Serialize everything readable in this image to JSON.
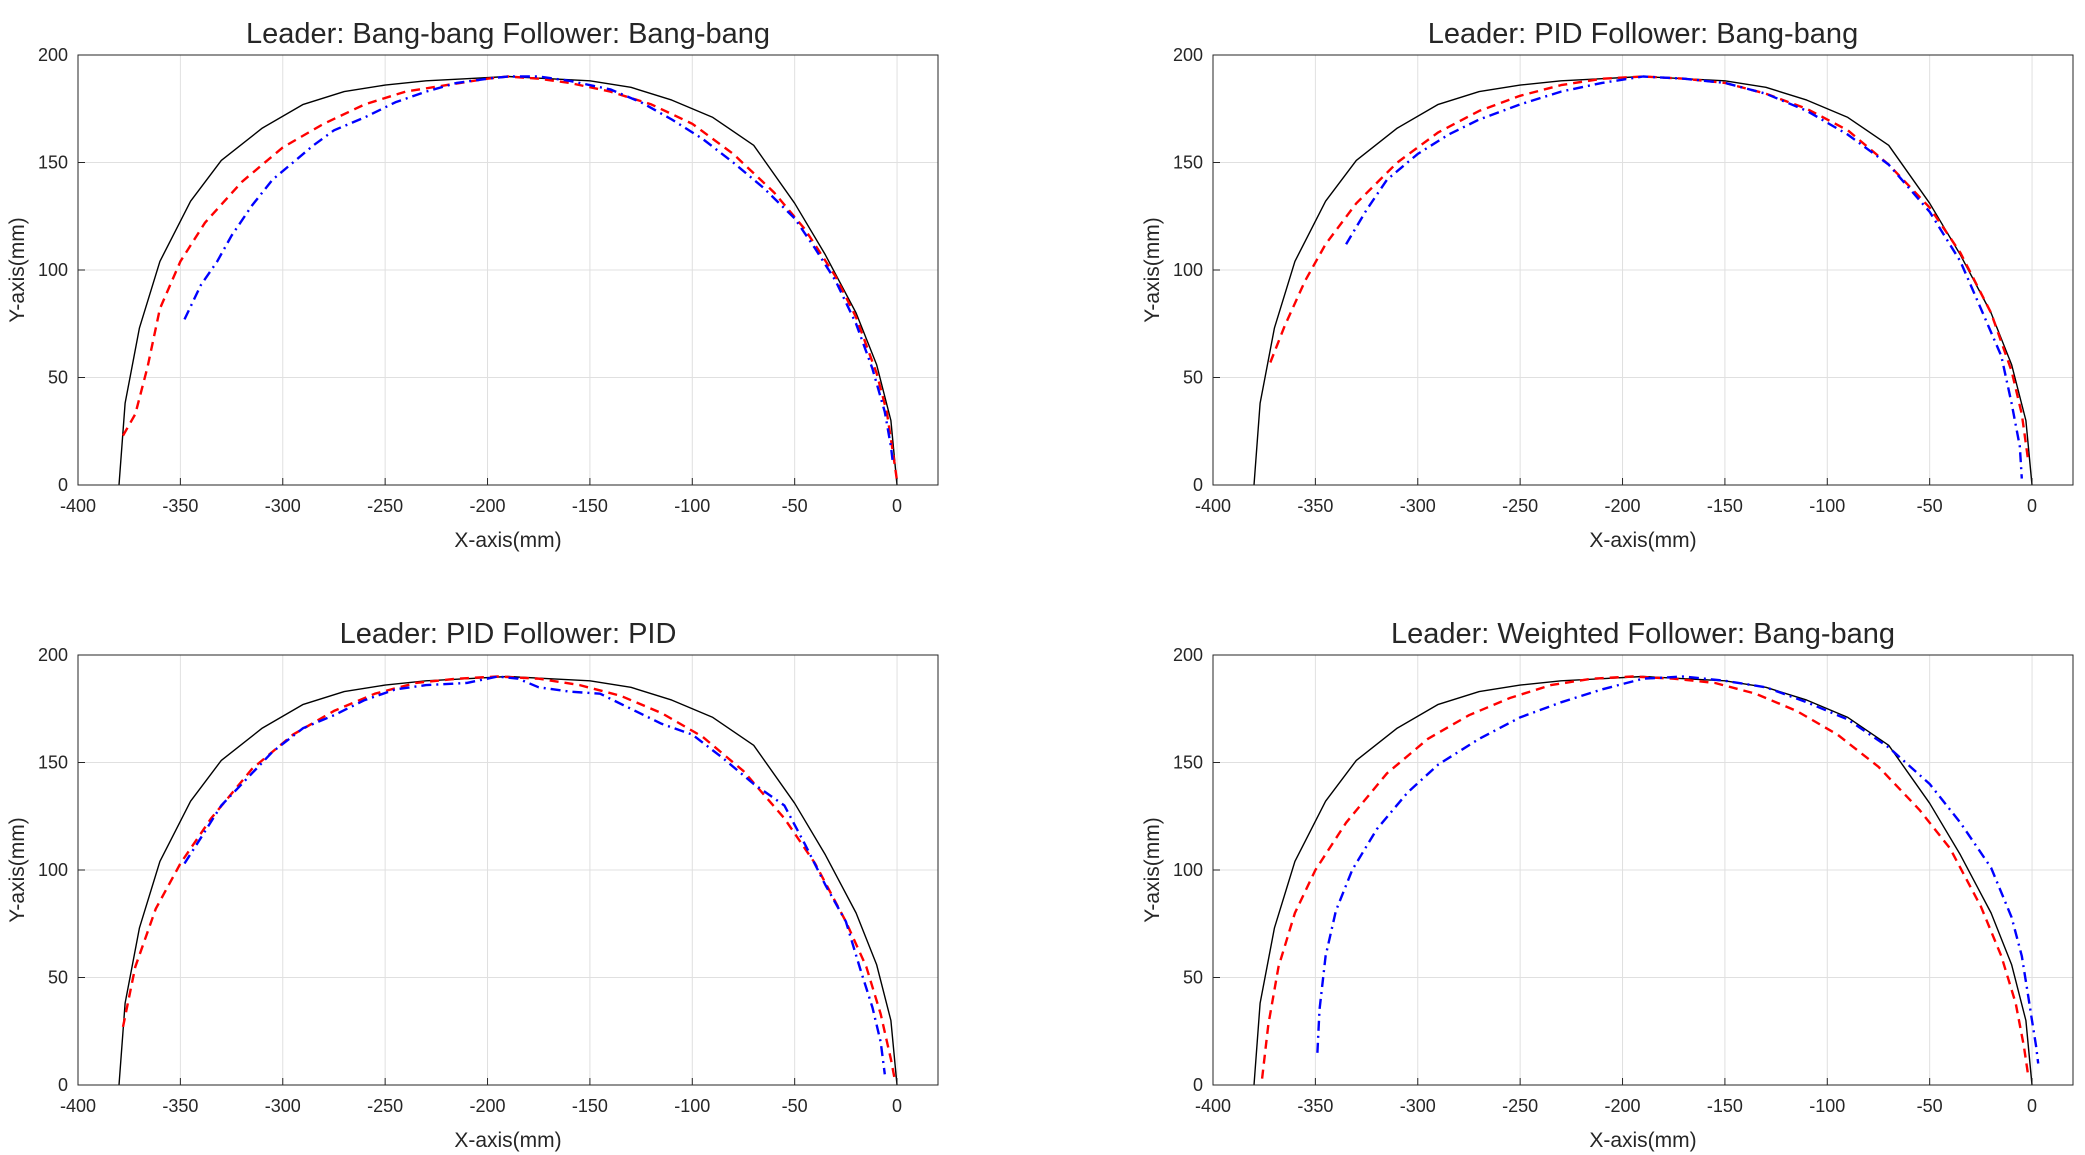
{
  "colors": {
    "reference": "#000000",
    "leader": "#ff0000",
    "follower": "#0000ff",
    "grid": "#e0e0e0",
    "axes": "#262626"
  },
  "chart_data": [
    {
      "type": "line",
      "title": "Leader: Bang-bang   Follower: Bang-bang",
      "xlabel": "X-axis(mm)",
      "ylabel": "Y-axis(mm)",
      "xlim": [
        -400,
        20
      ],
      "ylim": [
        0,
        200
      ],
      "xticks": [
        -400,
        -350,
        -300,
        -250,
        -200,
        -150,
        -100,
        -50,
        0
      ],
      "yticks": [
        0,
        50,
        100,
        150,
        200
      ],
      "grid": true,
      "series": [
        {
          "style": "solid",
          "color": "#000000",
          "x": [
            -380,
            -377,
            -370,
            -360,
            -345,
            -330,
            -310,
            -290,
            -270,
            -250,
            -230,
            -210,
            -190,
            -170,
            -150,
            -130,
            -110,
            -90,
            -70,
            -50,
            -35,
            -20,
            -10,
            -3,
            0
          ],
          "y": [
            0,
            38,
            73,
            104,
            132,
            151,
            166,
            177,
            183,
            186,
            188,
            189,
            190,
            189,
            188,
            185,
            179,
            171,
            158,
            131,
            107,
            80,
            56,
            30,
            0
          ]
        },
        {
          "style": "dashed",
          "color": "#ff0000",
          "x": [
            -378,
            -372,
            -366,
            -360,
            -350,
            -338,
            -320,
            -300,
            -280,
            -260,
            -240,
            -220,
            -200,
            -190,
            -175,
            -160,
            -140,
            -120,
            -100,
            -80,
            -60,
            -45,
            -30,
            -20,
            -10,
            -5,
            -2,
            0
          ],
          "y": [
            23,
            33,
            55,
            82,
            104,
            122,
            141,
            157,
            168,
            177,
            183,
            186,
            189,
            190,
            189,
            187,
            183,
            177,
            168,
            154,
            136,
            119,
            97,
            78,
            52,
            34,
            15,
            2
          ]
        },
        {
          "style": "dashdot",
          "color": "#0000ff",
          "x": [
            -348,
            -340,
            -332,
            -325,
            -315,
            -305,
            -295,
            -285,
            -275,
            -260,
            -245,
            -230,
            -215,
            -200,
            -190,
            -175,
            -160,
            -140,
            -125,
            -110,
            -95,
            -80,
            -65,
            -50,
            -40,
            -30,
            -20,
            -12,
            -6,
            -3,
            -2
          ],
          "y": [
            77,
            93,
            104,
            116,
            130,
            142,
            150,
            158,
            165,
            171,
            178,
            183,
            187,
            189,
            190,
            190,
            188,
            184,
            178,
            170,
            161,
            150,
            138,
            124,
            110,
            95,
            75,
            54,
            34,
            18,
            10
          ]
        }
      ]
    },
    {
      "type": "line",
      "title": "Leader: PID   Follower: Bang-bang",
      "xlabel": "X-axis(mm)",
      "ylabel": "Y-axis(mm)",
      "xlim": [
        -400,
        20
      ],
      "ylim": [
        0,
        200
      ],
      "xticks": [
        -400,
        -350,
        -300,
        -250,
        -200,
        -150,
        -100,
        -50,
        0
      ],
      "yticks": [
        0,
        50,
        100,
        150,
        200
      ],
      "grid": true,
      "series": [
        {
          "style": "solid",
          "color": "#000000",
          "x": [
            -380,
            -377,
            -370,
            -360,
            -345,
            -330,
            -310,
            -290,
            -270,
            -250,
            -230,
            -210,
            -190,
            -170,
            -150,
            -130,
            -110,
            -90,
            -70,
            -50,
            -35,
            -20,
            -10,
            -3,
            0
          ],
          "y": [
            0,
            38,
            73,
            104,
            132,
            151,
            166,
            177,
            183,
            186,
            188,
            189,
            190,
            189,
            188,
            185,
            179,
            171,
            158,
            131,
            107,
            80,
            56,
            30,
            0
          ]
        },
        {
          "style": "dashed",
          "color": "#ff0000",
          "x": [
            -372,
            -365,
            -355,
            -345,
            -330,
            -310,
            -290,
            -270,
            -250,
            -230,
            -210,
            -190,
            -170,
            -150,
            -130,
            -110,
            -90,
            -70,
            -50,
            -35,
            -20,
            -10,
            -5,
            -2
          ],
          "y": [
            57,
            74,
            95,
            112,
            131,
            150,
            164,
            174,
            181,
            186,
            189,
            190,
            189,
            187,
            182,
            175,
            165,
            149,
            129,
            108,
            80,
            53,
            33,
            12
          ]
        },
        {
          "style": "dashdot",
          "color": "#0000ff",
          "x": [
            -335,
            -325,
            -315,
            -300,
            -285,
            -270,
            -250,
            -230,
            -210,
            -190,
            -170,
            -150,
            -130,
            -110,
            -90,
            -70,
            -50,
            -35,
            -25,
            -15,
            -10,
            -6,
            -5
          ],
          "y": [
            112,
            128,
            142,
            154,
            163,
            170,
            177,
            183,
            187,
            190,
            189,
            187,
            182,
            174,
            163,
            149,
            127,
            104,
            82,
            60,
            38,
            18,
            3
          ]
        }
      ]
    },
    {
      "type": "line",
      "title": "Leader: PID   Follower: PID",
      "xlabel": "X-axis(mm)",
      "ylabel": "Y-axis(mm)",
      "xlim": [
        -400,
        20
      ],
      "ylim": [
        0,
        200
      ],
      "xticks": [
        -400,
        -350,
        -300,
        -250,
        -200,
        -150,
        -100,
        -50,
        0
      ],
      "yticks": [
        0,
        50,
        100,
        150,
        200
      ],
      "grid": true,
      "series": [
        {
          "style": "solid",
          "color": "#000000",
          "x": [
            -380,
            -377,
            -370,
            -360,
            -345,
            -330,
            -310,
            -290,
            -270,
            -250,
            -230,
            -210,
            -190,
            -170,
            -150,
            -130,
            -110,
            -90,
            -70,
            -50,
            -35,
            -20,
            -10,
            -3,
            0
          ],
          "y": [
            0,
            38,
            73,
            104,
            132,
            151,
            166,
            177,
            183,
            186,
            188,
            189,
            190,
            189,
            188,
            185,
            179,
            171,
            158,
            131,
            107,
            80,
            56,
            30,
            0
          ]
        },
        {
          "style": "dashed",
          "color": "#ff0000",
          "x": [
            -378,
            -372,
            -362,
            -350,
            -335,
            -315,
            -295,
            -275,
            -255,
            -235,
            -215,
            -195,
            -175,
            -155,
            -135,
            -115,
            -95,
            -75,
            -55,
            -40,
            -25,
            -15,
            -8,
            -3,
            -1
          ],
          "y": [
            27,
            55,
            82,
            103,
            124,
            147,
            163,
            174,
            182,
            187,
            189,
            190,
            189,
            186,
            181,
            173,
            162,
            146,
            124,
            103,
            76,
            55,
            33,
            12,
            2
          ]
        },
        {
          "style": "dashdot",
          "color": "#0000ff",
          "x": [
            -348,
            -340,
            -330,
            -318,
            -305,
            -290,
            -275,
            -260,
            -245,
            -230,
            -210,
            -195,
            -185,
            -175,
            -160,
            -145,
            -130,
            -115,
            -100,
            -85,
            -70,
            -55,
            -45,
            -35,
            -25,
            -18,
            -12,
            -8,
            -6
          ],
          "y": [
            103,
            115,
            130,
            142,
            155,
            166,
            172,
            179,
            184,
            186,
            187,
            190,
            189,
            185,
            183,
            182,
            175,
            168,
            163,
            152,
            140,
            130,
            112,
            93,
            76,
            54,
            36,
            20,
            5
          ]
        }
      ]
    },
    {
      "type": "line",
      "title": "Leader: Weighted   Follower: Bang-bang",
      "xlabel": "X-axis(mm)",
      "ylabel": "Y-axis(mm)",
      "xlim": [
        -400,
        20
      ],
      "ylim": [
        0,
        200
      ],
      "xticks": [
        -400,
        -350,
        -300,
        -250,
        -200,
        -150,
        -100,
        -50,
        0
      ],
      "yticks": [
        0,
        50,
        100,
        150,
        200
      ],
      "grid": true,
      "series": [
        {
          "style": "solid",
          "color": "#000000",
          "x": [
            -380,
            -377,
            -370,
            -360,
            -345,
            -330,
            -310,
            -290,
            -270,
            -250,
            -230,
            -210,
            -190,
            -170,
            -150,
            -130,
            -110,
            -90,
            -70,
            -50,
            -35,
            -20,
            -10,
            -3,
            0
          ],
          "y": [
            0,
            38,
            73,
            104,
            132,
            151,
            166,
            177,
            183,
            186,
            188,
            189,
            190,
            189,
            188,
            185,
            179,
            171,
            158,
            131,
            107,
            80,
            56,
            30,
            0
          ]
        },
        {
          "style": "dashed",
          "color": "#ff0000",
          "x": [
            -376,
            -373,
            -368,
            -360,
            -350,
            -335,
            -315,
            -295,
            -275,
            -255,
            -235,
            -215,
            -195,
            -175,
            -155,
            -135,
            -115,
            -95,
            -75,
            -55,
            -40,
            -25,
            -15,
            -8,
            -4,
            -2
          ],
          "y": [
            3,
            28,
            55,
            80,
            100,
            122,
            145,
            161,
            172,
            180,
            186,
            189,
            190,
            189,
            187,
            182,
            174,
            163,
            148,
            128,
            110,
            83,
            60,
            38,
            18,
            5
          ]
        },
        {
          "style": "dashdot",
          "color": "#0000ff",
          "x": [
            -349,
            -348,
            -345,
            -340,
            -332,
            -320,
            -305,
            -290,
            -270,
            -250,
            -230,
            -210,
            -190,
            -170,
            -150,
            -130,
            -110,
            -90,
            -70,
            -50,
            -35,
            -20,
            -10,
            -5,
            -2,
            0,
            2,
            3
          ],
          "y": [
            15,
            35,
            60,
            81,
            100,
            119,
            136,
            149,
            161,
            171,
            178,
            184,
            189,
            190,
            188,
            185,
            178,
            170,
            157,
            140,
            122,
            101,
            78,
            60,
            42,
            30,
            18,
            10
          ]
        }
      ]
    }
  ]
}
